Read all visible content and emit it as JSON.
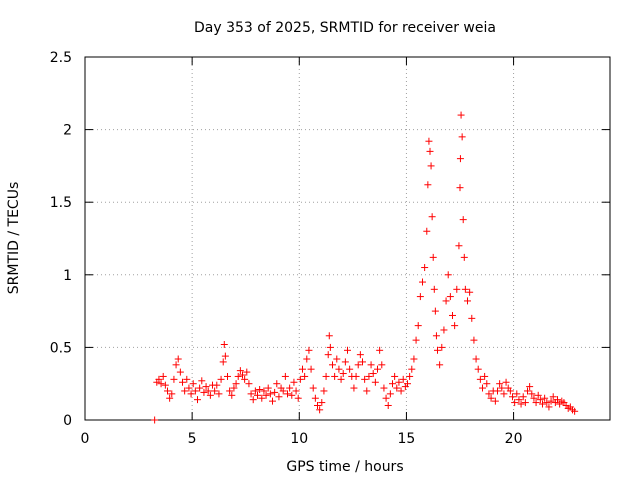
{
  "chart_data": {
    "type": "scatter",
    "title": "Day 353 of 2025, SRMTID for receiver weia",
    "xlabel": "GPS time / hours",
    "ylabel": "SRMTID / TECUs",
    "xlim": [
      0,
      24.5
    ],
    "ylim": [
      0,
      2.5
    ],
    "xticks": [
      0,
      5,
      10,
      15,
      20
    ],
    "yticks": [
      0,
      0.5,
      1,
      1.5,
      2,
      2.5
    ],
    "xtick_labels": [
      "0",
      "5",
      "10",
      "15",
      "20"
    ],
    "ytick_labels": [
      "0",
      "0.5",
      "1",
      "1.5",
      "2",
      "2.5"
    ],
    "grid": true,
    "series": [
      {
        "name": "SRMTID",
        "marker": "plus",
        "color": "#ff0000",
        "points": [
          [
            3.25,
            0.0
          ],
          [
            3.35,
            0.26
          ],
          [
            3.45,
            0.28
          ],
          [
            3.55,
            0.25
          ],
          [
            3.65,
            0.3
          ],
          [
            3.75,
            0.24
          ],
          [
            3.85,
            0.2
          ],
          [
            3.95,
            0.15
          ],
          [
            4.05,
            0.18
          ],
          [
            4.15,
            0.28
          ],
          [
            4.25,
            0.38
          ],
          [
            4.35,
            0.42
          ],
          [
            4.45,
            0.33
          ],
          [
            4.55,
            0.26
          ],
          [
            4.65,
            0.2
          ],
          [
            4.75,
            0.28
          ],
          [
            4.85,
            0.22
          ],
          [
            4.95,
            0.18
          ],
          [
            5.05,
            0.25
          ],
          [
            5.15,
            0.2
          ],
          [
            5.25,
            0.14
          ],
          [
            5.35,
            0.22
          ],
          [
            5.45,
            0.27
          ],
          [
            5.55,
            0.19
          ],
          [
            5.65,
            0.23
          ],
          [
            5.75,
            0.2
          ],
          [
            5.85,
            0.17
          ],
          [
            5.95,
            0.24
          ],
          [
            6.05,
            0.2
          ],
          [
            6.15,
            0.24
          ],
          [
            6.25,
            0.18
          ],
          [
            6.35,
            0.28
          ],
          [
            6.45,
            0.4
          ],
          [
            6.5,
            0.52
          ],
          [
            6.55,
            0.44
          ],
          [
            6.65,
            0.3
          ],
          [
            6.75,
            0.2
          ],
          [
            6.85,
            0.17
          ],
          [
            6.95,
            0.22
          ],
          [
            7.05,
            0.25
          ],
          [
            7.15,
            0.3
          ],
          [
            7.25,
            0.34
          ],
          [
            7.35,
            0.31
          ],
          [
            7.45,
            0.28
          ],
          [
            7.55,
            0.33
          ],
          [
            7.65,
            0.25
          ],
          [
            7.75,
            0.18
          ],
          [
            7.85,
            0.14
          ],
          [
            7.95,
            0.2
          ],
          [
            8.05,
            0.17
          ],
          [
            8.15,
            0.21
          ],
          [
            8.25,
            0.15
          ],
          [
            8.35,
            0.2
          ],
          [
            8.45,
            0.17
          ],
          [
            8.55,
            0.22
          ],
          [
            8.65,
            0.18
          ],
          [
            8.75,
            0.13
          ],
          [
            8.85,
            0.19
          ],
          [
            8.95,
            0.25
          ],
          [
            9.05,
            0.16
          ],
          [
            9.15,
            0.22
          ],
          [
            9.25,
            0.2
          ],
          [
            9.35,
            0.3
          ],
          [
            9.45,
            0.18
          ],
          [
            9.55,
            0.22
          ],
          [
            9.65,
            0.17
          ],
          [
            9.75,
            0.26
          ],
          [
            9.85,
            0.2
          ],
          [
            9.95,
            0.15
          ],
          [
            10.05,
            0.28
          ],
          [
            10.15,
            0.35
          ],
          [
            10.25,
            0.3
          ],
          [
            10.35,
            0.42
          ],
          [
            10.45,
            0.48
          ],
          [
            10.55,
            0.35
          ],
          [
            10.65,
            0.22
          ],
          [
            10.75,
            0.15
          ],
          [
            10.85,
            0.1
          ],
          [
            10.95,
            0.07
          ],
          [
            11.05,
            0.12
          ],
          [
            11.15,
            0.2
          ],
          [
            11.25,
            0.3
          ],
          [
            11.35,
            0.45
          ],
          [
            11.4,
            0.58
          ],
          [
            11.45,
            0.5
          ],
          [
            11.55,
            0.38
          ],
          [
            11.65,
            0.3
          ],
          [
            11.75,
            0.42
          ],
          [
            11.85,
            0.35
          ],
          [
            11.95,
            0.28
          ],
          [
            12.05,
            0.32
          ],
          [
            12.15,
            0.4
          ],
          [
            12.25,
            0.48
          ],
          [
            12.35,
            0.35
          ],
          [
            12.45,
            0.3
          ],
          [
            12.55,
            0.22
          ],
          [
            12.65,
            0.3
          ],
          [
            12.75,
            0.38
          ],
          [
            12.85,
            0.45
          ],
          [
            12.95,
            0.4
          ],
          [
            13.05,
            0.28
          ],
          [
            13.15,
            0.2
          ],
          [
            13.25,
            0.3
          ],
          [
            13.35,
            0.38
          ],
          [
            13.45,
            0.32
          ],
          [
            13.55,
            0.26
          ],
          [
            13.65,
            0.35
          ],
          [
            13.75,
            0.48
          ],
          [
            13.85,
            0.38
          ],
          [
            13.95,
            0.22
          ],
          [
            14.05,
            0.15
          ],
          [
            14.15,
            0.1
          ],
          [
            14.25,
            0.18
          ],
          [
            14.35,
            0.25
          ],
          [
            14.45,
            0.3
          ],
          [
            14.55,
            0.22
          ],
          [
            14.65,
            0.26
          ],
          [
            14.75,
            0.2
          ],
          [
            14.85,
            0.28
          ],
          [
            14.95,
            0.23
          ],
          [
            15.05,
            0.25
          ],
          [
            15.15,
            0.3
          ],
          [
            15.25,
            0.35
          ],
          [
            15.35,
            0.42
          ],
          [
            15.45,
            0.55
          ],
          [
            15.55,
            0.65
          ],
          [
            15.65,
            0.85
          ],
          [
            15.75,
            0.95
          ],
          [
            15.85,
            1.05
          ],
          [
            15.95,
            1.3
          ],
          [
            16.0,
            1.62
          ],
          [
            16.05,
            1.92
          ],
          [
            16.1,
            1.85
          ],
          [
            16.15,
            1.75
          ],
          [
            16.2,
            1.4
          ],
          [
            16.25,
            1.12
          ],
          [
            16.3,
            0.9
          ],
          [
            16.35,
            0.75
          ],
          [
            16.4,
            0.58
          ],
          [
            16.45,
            0.48
          ],
          [
            16.55,
            0.38
          ],
          [
            16.65,
            0.5
          ],
          [
            16.75,
            0.62
          ],
          [
            16.85,
            0.82
          ],
          [
            16.95,
            1.0
          ],
          [
            17.05,
            0.85
          ],
          [
            17.15,
            0.72
          ],
          [
            17.25,
            0.65
          ],
          [
            17.35,
            0.9
          ],
          [
            17.45,
            1.2
          ],
          [
            17.5,
            1.6
          ],
          [
            17.52,
            1.8
          ],
          [
            17.55,
            2.1
          ],
          [
            17.6,
            1.95
          ],
          [
            17.65,
            1.38
          ],
          [
            17.7,
            1.12
          ],
          [
            17.75,
            0.9
          ],
          [
            17.85,
            0.82
          ],
          [
            17.95,
            0.88
          ],
          [
            18.05,
            0.7
          ],
          [
            18.15,
            0.55
          ],
          [
            18.25,
            0.42
          ],
          [
            18.35,
            0.35
          ],
          [
            18.45,
            0.28
          ],
          [
            18.55,
            0.22
          ],
          [
            18.65,
            0.3
          ],
          [
            18.75,
            0.25
          ],
          [
            18.85,
            0.18
          ],
          [
            18.95,
            0.15
          ],
          [
            19.05,
            0.2
          ],
          [
            19.15,
            0.13
          ],
          [
            19.25,
            0.2
          ],
          [
            19.35,
            0.25
          ],
          [
            19.45,
            0.22
          ],
          [
            19.55,
            0.18
          ],
          [
            19.65,
            0.26
          ],
          [
            19.75,
            0.22
          ],
          [
            19.85,
            0.2
          ],
          [
            19.95,
            0.16
          ],
          [
            20.05,
            0.12
          ],
          [
            20.15,
            0.18
          ],
          [
            20.25,
            0.14
          ],
          [
            20.35,
            0.11
          ],
          [
            20.45,
            0.16
          ],
          [
            20.55,
            0.12
          ],
          [
            20.65,
            0.2
          ],
          [
            20.75,
            0.23
          ],
          [
            20.85,
            0.18
          ],
          [
            20.95,
            0.15
          ],
          [
            21.05,
            0.12
          ],
          [
            21.15,
            0.17
          ],
          [
            21.25,
            0.14
          ],
          [
            21.35,
            0.11
          ],
          [
            21.45,
            0.15
          ],
          [
            21.55,
            0.12
          ],
          [
            21.65,
            0.09
          ],
          [
            21.75,
            0.13
          ],
          [
            21.85,
            0.16
          ],
          [
            21.95,
            0.12
          ],
          [
            22.05,
            0.14
          ],
          [
            22.15,
            0.11
          ],
          [
            22.25,
            0.13
          ],
          [
            22.35,
            0.12
          ],
          [
            22.45,
            0.1
          ],
          [
            22.55,
            0.08
          ],
          [
            22.65,
            0.09
          ],
          [
            22.75,
            0.07
          ],
          [
            22.85,
            0.06
          ]
        ]
      }
    ]
  }
}
